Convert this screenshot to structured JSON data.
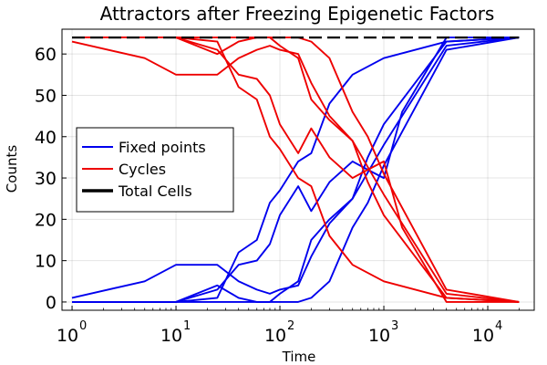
{
  "chart_data": {
    "type": "line",
    "title": "Attractors after Freezing Epigenetic Factors",
    "xlabel": "Time",
    "ylabel": "Counts",
    "xscale": "log",
    "xlim": [
      0.8,
      28000
    ],
    "ylim": [
      -2,
      66
    ],
    "xticks": [
      {
        "value": 1,
        "base": "10",
        "exp": "0"
      },
      {
        "value": 10,
        "base": "10",
        "exp": "1"
      },
      {
        "value": 100,
        "base": "10",
        "exp": "2"
      },
      {
        "value": 1000,
        "base": "10",
        "exp": "3"
      },
      {
        "value": 10000,
        "base": "10",
        "exp": "4"
      }
    ],
    "yticks": [
      "0",
      "10",
      "20",
      "30",
      "40",
      "50",
      "60"
    ],
    "grid": true,
    "legend_position": "middle-left",
    "legend": [
      {
        "label": "Fixed points",
        "color": "#0000ee",
        "style": "solid"
      },
      {
        "label": "Cycles",
        "color": "#ee0000",
        "style": "solid"
      },
      {
        "label": "Total Cells",
        "color": "#000000",
        "style": "bold"
      }
    ],
    "series": [
      {
        "group": "fixed",
        "color": "#0000ee",
        "points": [
          [
            1,
            1
          ],
          [
            5,
            5
          ],
          [
            10,
            9
          ],
          [
            25,
            9
          ],
          [
            40,
            5
          ],
          [
            60,
            3
          ],
          [
            80,
            2
          ],
          [
            100,
            3
          ],
          [
            150,
            4
          ],
          [
            200,
            11
          ],
          [
            300,
            19
          ],
          [
            500,
            25
          ],
          [
            700,
            35
          ],
          [
            1000,
            43
          ],
          [
            4000,
            63
          ],
          [
            20000,
            64
          ]
        ]
      },
      {
        "group": "fixed",
        "color": "#0000ee",
        "points": [
          [
            1,
            0
          ],
          [
            10,
            0
          ],
          [
            25,
            1
          ],
          [
            40,
            12
          ],
          [
            60,
            15
          ],
          [
            80,
            24
          ],
          [
            100,
            27
          ],
          [
            150,
            34
          ],
          [
            200,
            36
          ],
          [
            300,
            48
          ],
          [
            500,
            55
          ],
          [
            1000,
            59
          ],
          [
            4000,
            63
          ],
          [
            20000,
            64
          ]
        ]
      },
      {
        "group": "fixed",
        "color": "#0000ee",
        "points": [
          [
            1,
            0
          ],
          [
            10,
            0
          ],
          [
            25,
            3
          ],
          [
            40,
            9
          ],
          [
            60,
            10
          ],
          [
            80,
            14
          ],
          [
            100,
            21
          ],
          [
            150,
            28
          ],
          [
            200,
            22
          ],
          [
            300,
            29
          ],
          [
            500,
            34
          ],
          [
            700,
            32
          ],
          [
            1000,
            30
          ],
          [
            1500,
            46
          ],
          [
            4000,
            64
          ],
          [
            20000,
            64
          ]
        ]
      },
      {
        "group": "fixed",
        "color": "#0000ee",
        "points": [
          [
            1,
            0
          ],
          [
            10,
            0
          ],
          [
            25,
            4
          ],
          [
            40,
            1
          ],
          [
            60,
            0
          ],
          [
            80,
            0
          ],
          [
            100,
            0
          ],
          [
            150,
            0
          ],
          [
            200,
            1
          ],
          [
            300,
            5
          ],
          [
            500,
            18
          ],
          [
            700,
            24
          ],
          [
            1000,
            33
          ],
          [
            4000,
            61
          ],
          [
            20000,
            64
          ]
        ]
      },
      {
        "group": "fixed",
        "color": "#0000ee",
        "points": [
          [
            1,
            0
          ],
          [
            10,
            0
          ],
          [
            25,
            0
          ],
          [
            40,
            0
          ],
          [
            60,
            0
          ],
          [
            80,
            0
          ],
          [
            100,
            2
          ],
          [
            150,
            5
          ],
          [
            200,
            15
          ],
          [
            300,
            20
          ],
          [
            500,
            25
          ],
          [
            1000,
            38
          ],
          [
            4000,
            62
          ],
          [
            20000,
            64
          ]
        ]
      },
      {
        "group": "cycles",
        "color": "#ee0000",
        "points": [
          [
            1,
            63
          ],
          [
            5,
            59
          ],
          [
            10,
            55
          ],
          [
            25,
            55
          ],
          [
            40,
            59
          ],
          [
            60,
            61
          ],
          [
            80,
            62
          ],
          [
            100,
            61
          ],
          [
            150,
            60
          ],
          [
            200,
            53
          ],
          [
            300,
            45
          ],
          [
            500,
            39
          ],
          [
            700,
            29
          ],
          [
            1000,
            21
          ],
          [
            4000,
            1
          ],
          [
            20000,
            0
          ]
        ]
      },
      {
        "group": "cycles",
        "color": "#ee0000",
        "points": [
          [
            1,
            64
          ],
          [
            10,
            64
          ],
          [
            25,
            63
          ],
          [
            40,
            52
          ],
          [
            60,
            49
          ],
          [
            80,
            40
          ],
          [
            100,
            37
          ],
          [
            150,
            30
          ],
          [
            200,
            28
          ],
          [
            300,
            16
          ],
          [
            500,
            9
          ],
          [
            1000,
            5
          ],
          [
            4000,
            1
          ],
          [
            20000,
            0
          ]
        ]
      },
      {
        "group": "cycles",
        "color": "#ee0000",
        "points": [
          [
            1,
            64
          ],
          [
            10,
            64
          ],
          [
            25,
            61
          ],
          [
            40,
            55
          ],
          [
            60,
            54
          ],
          [
            80,
            50
          ],
          [
            100,
            43
          ],
          [
            150,
            36
          ],
          [
            200,
            42
          ],
          [
            300,
            35
          ],
          [
            500,
            30
          ],
          [
            700,
            32
          ],
          [
            1000,
            34
          ],
          [
            1500,
            18
          ],
          [
            4000,
            0
          ],
          [
            20000,
            0
          ]
        ]
      },
      {
        "group": "cycles",
        "color": "#ee0000",
        "points": [
          [
            1,
            64
          ],
          [
            10,
            64
          ],
          [
            25,
            60
          ],
          [
            40,
            63
          ],
          [
            60,
            64
          ],
          [
            80,
            64
          ],
          [
            100,
            64
          ],
          [
            150,
            64
          ],
          [
            200,
            63
          ],
          [
            300,
            59
          ],
          [
            500,
            46
          ],
          [
            700,
            40
          ],
          [
            1000,
            31
          ],
          [
            4000,
            3
          ],
          [
            20000,
            0
          ]
        ]
      },
      {
        "group": "cycles",
        "color": "#ee0000",
        "points": [
          [
            1,
            64
          ],
          [
            10,
            64
          ],
          [
            25,
            64
          ],
          [
            40,
            64
          ],
          [
            60,
            64
          ],
          [
            80,
            64
          ],
          [
            100,
            62
          ],
          [
            150,
            59
          ],
          [
            200,
            49
          ],
          [
            300,
            44
          ],
          [
            500,
            39
          ],
          [
            1000,
            26
          ],
          [
            4000,
            2
          ],
          [
            20000,
            0
          ]
        ]
      },
      {
        "group": "total",
        "color": "#000000",
        "dash": true,
        "points": [
          [
            1,
            64
          ],
          [
            20000,
            64
          ]
        ]
      }
    ]
  }
}
